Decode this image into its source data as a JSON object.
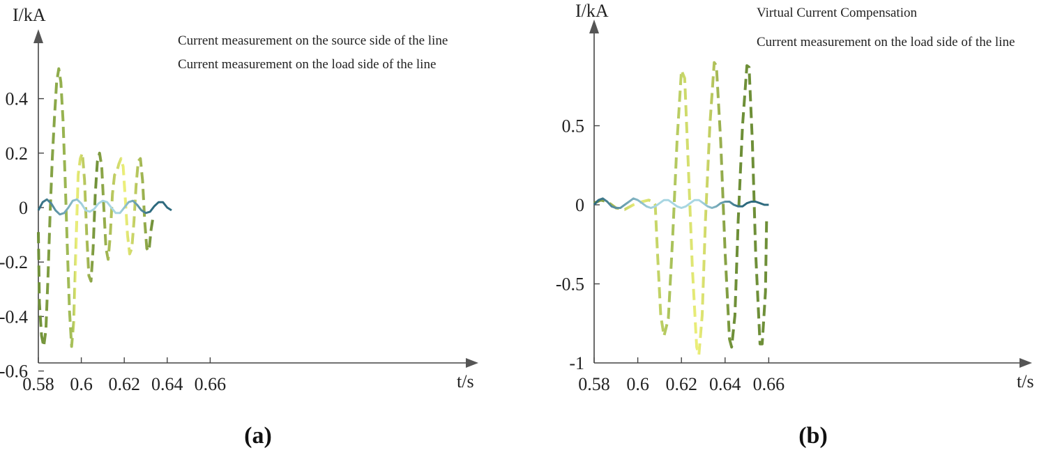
{
  "colors": {
    "dash_dark": "#6e8f38",
    "dash_mid": "#a8c15a",
    "dash_light": "#eef07a",
    "solid_dark": "#2e6a7e",
    "solid_light": "#a8d6e2",
    "axis": "#444444"
  },
  "chart_data": [
    {
      "type": "line",
      "caption": "(a)",
      "xlabel": "t/s",
      "ylabel": "I/kA",
      "xlim": [
        0.58,
        0.68
      ],
      "ylim": [
        -0.6,
        0.6
      ],
      "xticks": [
        0.58,
        0.6,
        0.62,
        0.64,
        0.66
      ],
      "xtick_labels": [
        "0.58",
        "0.6",
        "0.62",
        "0.64",
        "0.66"
      ],
      "yticks": [
        0.4,
        0.2,
        0,
        -0.2,
        -0.4,
        -0.6
      ],
      "ytick_labels": [
        "0.4",
        "0.2",
        "0",
        "-0.2",
        "-0.4",
        "-0.6"
      ],
      "grid": false,
      "legend_position": "top",
      "series": [
        {
          "name": "Current measurement on the source side of the line",
          "style": "dashed",
          "points": [
            [
              0.58,
              -0.09
            ],
            [
              0.5805,
              -0.35
            ],
            [
              0.5815,
              -0.47
            ],
            [
              0.5825,
              -0.51
            ],
            [
              0.5835,
              -0.45
            ],
            [
              0.5845,
              -0.25
            ],
            [
              0.5855,
              -0.02
            ],
            [
              0.5865,
              0.18
            ],
            [
              0.5875,
              0.33
            ],
            [
              0.5885,
              0.46
            ],
            [
              0.5895,
              0.51
            ],
            [
              0.5905,
              0.46
            ],
            [
              0.5915,
              0.32
            ],
            [
              0.5925,
              0.1
            ],
            [
              0.5935,
              -0.15
            ],
            [
              0.5945,
              -0.38
            ],
            [
              0.5955,
              -0.51
            ],
            [
              0.5965,
              -0.42
            ],
            [
              0.5975,
              -0.15
            ],
            [
              0.5985,
              0.12
            ],
            [
              0.5995,
              0.18
            ],
            [
              0.6005,
              0.2
            ],
            [
              0.6015,
              0.1
            ],
            [
              0.6025,
              -0.1
            ],
            [
              0.6035,
              -0.25
            ],
            [
              0.6045,
              -0.27
            ],
            [
              0.6055,
              -0.15
            ],
            [
              0.6065,
              0.05
            ],
            [
              0.6075,
              0.17
            ],
            [
              0.6085,
              0.2
            ],
            [
              0.6095,
              0.15
            ],
            [
              0.6105,
              0.0
            ],
            [
              0.6115,
              -0.15
            ],
            [
              0.6125,
              -0.19
            ],
            [
              0.6135,
              -0.1
            ],
            [
              0.6145,
              0.05
            ],
            [
              0.6155,
              0.12
            ],
            [
              0.6165,
              0.13
            ],
            [
              0.6175,
              0.16
            ],
            [
              0.6185,
              0.18
            ],
            [
              0.6195,
              0.15
            ],
            [
              0.6205,
              0.03
            ],
            [
              0.6215,
              -0.1
            ],
            [
              0.6225,
              -0.17
            ],
            [
              0.6235,
              -0.15
            ],
            [
              0.6245,
              -0.05
            ],
            [
              0.6255,
              0.08
            ],
            [
              0.6265,
              0.17
            ],
            [
              0.6275,
              0.18
            ],
            [
              0.6285,
              0.1
            ],
            [
              0.6295,
              -0.05
            ],
            [
              0.6305,
              -0.15
            ],
            [
              0.6315,
              -0.16
            ],
            [
              0.6325,
              -0.08
            ],
            [
              0.6335,
              -0.03
            ]
          ]
        },
        {
          "name": "Current measurement on the load side of the line",
          "style": "solid",
          "points": [
            [
              0.58,
              -0.01
            ],
            [
              0.582,
              0.02
            ],
            [
              0.584,
              0.03
            ],
            [
              0.586,
              0.015
            ],
            [
              0.588,
              -0.01
            ],
            [
              0.59,
              -0.025
            ],
            [
              0.592,
              -0.02
            ],
            [
              0.594,
              0.0
            ],
            [
              0.596,
              0.025
            ],
            [
              0.598,
              0.03
            ],
            [
              0.6,
              0.015
            ],
            [
              0.602,
              -0.01
            ],
            [
              0.604,
              -0.015
            ],
            [
              0.606,
              -0.005
            ],
            [
              0.608,
              0.015
            ],
            [
              0.61,
              0.025
            ],
            [
              0.612,
              0.02
            ],
            [
              0.614,
              0.0
            ],
            [
              0.616,
              -0.02
            ],
            [
              0.618,
              -0.02
            ],
            [
              0.62,
              0.0
            ],
            [
              0.622,
              0.02
            ],
            [
              0.624,
              0.025
            ],
            [
              0.626,
              0.01
            ],
            [
              0.628,
              -0.01
            ],
            [
              0.63,
              -0.02
            ],
            [
              0.632,
              -0.015
            ],
            [
              0.634,
              0.005
            ],
            [
              0.636,
              0.02
            ],
            [
              0.638,
              0.02
            ],
            [
              0.64,
              0.0
            ],
            [
              0.642,
              -0.01
            ]
          ]
        }
      ]
    },
    {
      "type": "line",
      "caption": "(b)",
      "xlabel": "t/s",
      "ylabel": "I/kA",
      "xlim": [
        0.58,
        0.68
      ],
      "ylim": [
        -1.0,
        1.0
      ],
      "xticks": [
        0.58,
        0.6,
        0.62,
        0.64,
        0.66
      ],
      "xtick_labels": [
        "0.58",
        "0.6",
        "0.62",
        "0.64",
        "0.66"
      ],
      "yticks": [
        0.5,
        0,
        -0.5,
        -1
      ],
      "ytick_labels": [
        "0.5",
        "0",
        "-0.5",
        "-1"
      ],
      "grid": false,
      "legend_position": "top",
      "series": [
        {
          "name": "Virtual Current Compensation",
          "style": "dashed",
          "points": [
            [
              0.58,
              0.01
            ],
            [
              0.583,
              0.03
            ],
            [
              0.586,
              0.02
            ],
            [
              0.59,
              -0.02
            ],
            [
              0.594,
              -0.03
            ],
            [
              0.598,
              0.0
            ],
            [
              0.602,
              0.02
            ],
            [
              0.605,
              0.03
            ],
            [
              0.607,
              0.02
            ],
            [
              0.608,
              0.0
            ],
            [
              0.609,
              -0.3
            ],
            [
              0.6105,
              -0.7
            ],
            [
              0.612,
              -0.83
            ],
            [
              0.614,
              -0.72
            ],
            [
              0.616,
              -0.2
            ],
            [
              0.618,
              0.4
            ],
            [
              0.62,
              0.85
            ],
            [
              0.6215,
              0.8
            ],
            [
              0.623,
              0.3
            ],
            [
              0.625,
              -0.4
            ],
            [
              0.627,
              -0.9
            ],
            [
              0.628,
              -0.95
            ],
            [
              0.6295,
              -0.7
            ],
            [
              0.631,
              -0.1
            ],
            [
              0.633,
              0.5
            ],
            [
              0.635,
              0.9
            ],
            [
              0.636,
              0.88
            ],
            [
              0.638,
              0.4
            ],
            [
              0.64,
              -0.3
            ],
            [
              0.642,
              -0.85
            ],
            [
              0.643,
              -0.9
            ],
            [
              0.6445,
              -0.7
            ],
            [
              0.646,
              -0.1
            ],
            [
              0.648,
              0.5
            ],
            [
              0.65,
              0.88
            ],
            [
              0.651,
              0.87
            ],
            [
              0.6525,
              0.4
            ],
            [
              0.654,
              -0.3
            ],
            [
              0.656,
              -0.88
            ],
            [
              0.657,
              -0.88
            ],
            [
              0.6585,
              -0.55
            ],
            [
              0.659,
              -0.1
            ]
          ]
        },
        {
          "name": "Current measurement on the load side of the line",
          "style": "solid",
          "points": [
            [
              0.58,
              0.0
            ],
            [
              0.582,
              0.03
            ],
            [
              0.584,
              0.04
            ],
            [
              0.586,
              0.02
            ],
            [
              0.588,
              -0.01
            ],
            [
              0.59,
              -0.02
            ],
            [
              0.592,
              -0.02
            ],
            [
              0.594,
              0.0
            ],
            [
              0.596,
              0.02
            ],
            [
              0.598,
              0.04
            ],
            [
              0.6,
              0.03
            ],
            [
              0.602,
              0.01
            ],
            [
              0.604,
              -0.01
            ],
            [
              0.606,
              -0.02
            ],
            [
              0.608,
              -0.01
            ],
            [
              0.61,
              0.01
            ],
            [
              0.612,
              0.03
            ],
            [
              0.614,
              0.03
            ],
            [
              0.616,
              0.01
            ],
            [
              0.618,
              -0.01
            ],
            [
              0.62,
              -0.02
            ],
            [
              0.622,
              -0.01
            ],
            [
              0.624,
              0.01
            ],
            [
              0.626,
              0.03
            ],
            [
              0.628,
              0.03
            ],
            [
              0.63,
              0.01
            ],
            [
              0.632,
              -0.01
            ],
            [
              0.634,
              -0.02
            ],
            [
              0.636,
              -0.01
            ],
            [
              0.638,
              0.01
            ],
            [
              0.64,
              0.02
            ],
            [
              0.642,
              0.02
            ],
            [
              0.644,
              0.0
            ],
            [
              0.646,
              -0.01
            ],
            [
              0.648,
              -0.01
            ],
            [
              0.65,
              0.01
            ],
            [
              0.652,
              0.02
            ],
            [
              0.654,
              0.02
            ],
            [
              0.656,
              0.01
            ],
            [
              0.658,
              0.0
            ],
            [
              0.66,
              0.0
            ]
          ]
        }
      ]
    }
  ]
}
